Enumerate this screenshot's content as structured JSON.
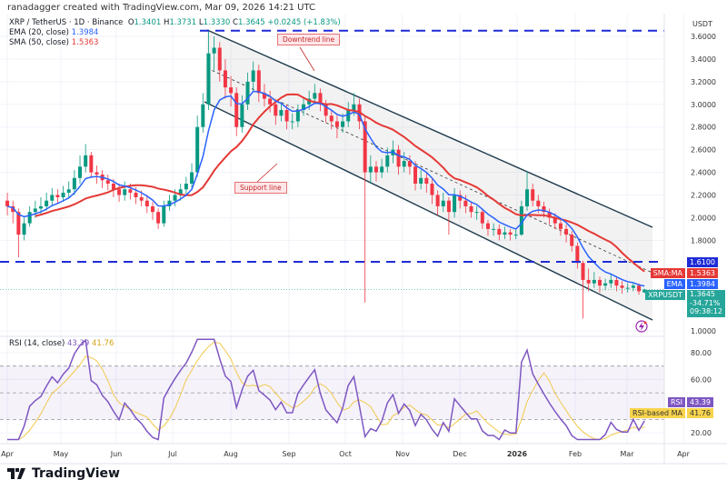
{
  "header": {
    "credit": "ranadagger created with TradingView.com, Mar 09, 2026 14:21 UTC"
  },
  "legend": {
    "symbol": "XRP / TetherUS · 1D · Binance",
    "open_label": "O",
    "open": "1.3401",
    "high_label": "H",
    "high": "1.3731",
    "low_label": "L",
    "low": "1.3330",
    "close_label": "C",
    "close": "1.3645",
    "change": "+0.0245 (+1.83%)",
    "ema_label": "EMA (20, close)",
    "ema_value": "1.3984",
    "sma_label": "SMA (50, close)",
    "sma_value": "1.5363",
    "rsi_label": "RSI (14, close)",
    "rsi_value": "43.39",
    "rsi_ma_value": "41.76"
  },
  "price_axis": {
    "unit": "USDT",
    "ticks": [
      "3.6000",
      "3.4000",
      "3.2000",
      "3.0000",
      "2.8000",
      "2.6000",
      "2.4000",
      "2.2000",
      "2.0000",
      "1.8000",
      "1.0000"
    ]
  },
  "rsi_axis": {
    "ticks": [
      "80.00",
      "60.00",
      "20.00"
    ]
  },
  "tags": {
    "level": "1.6100",
    "sma_name": "SMA:MA",
    "sma": "1.5363",
    "ema_name": "EMA",
    "ema": "1.3984",
    "symbol_name": "XRPUSDT",
    "price": "1.3645",
    "change_pct": "-34.71%",
    "countdown": "09:38:12",
    "rsi_name": "RSI",
    "rsi": "43.39",
    "rsi_ma_name": "RSI-based MA",
    "rsi_ma": "41.76"
  },
  "annotations": {
    "downtrend": "Downtrend line",
    "support": "Support line"
  },
  "x_axis": [
    "Apr",
    "May",
    "Jun",
    "Jul",
    "Aug",
    "Sep",
    "Oct",
    "Nov",
    "Dec",
    "2026",
    "Feb",
    "Mar",
    "Apr"
  ],
  "logo": {
    "text": "TradingView"
  },
  "colors": {
    "up": "#089981",
    "down": "#f23645",
    "ema": "#2962ff",
    "sma": "#e53935",
    "rsi": "#7e57c2",
    "rsi_ma": "#f2c94c",
    "level": "#1e2bd6"
  },
  "chart_data": {
    "type": "candlestick",
    "interval": "3 days per candle (approximate read)",
    "start": "2025-04-01",
    "end": "2026-03-09",
    "ylim": [
      1.0,
      3.7
    ],
    "horizontal_levels": [
      3.65,
      1.61
    ],
    "prev_close": 2.15,
    "close": [
      2.1,
      2.05,
      1.85,
      1.95,
      2.05,
      2.08,
      2.1,
      2.15,
      2.2,
      2.18,
      2.22,
      2.25,
      2.35,
      2.45,
      2.55,
      2.4,
      2.38,
      2.33,
      2.3,
      2.25,
      2.2,
      2.25,
      2.22,
      2.18,
      2.15,
      2.1,
      2.05,
      1.95,
      2.1,
      2.15,
      2.2,
      2.25,
      2.3,
      2.4,
      2.8,
      3.0,
      3.45,
      3.5,
      3.3,
      3.15,
      3.1,
      2.8,
      3.0,
      3.2,
      3.3,
      3.1,
      3.05,
      3.0,
      2.9,
      2.95,
      2.85,
      2.85,
      2.95,
      3.0,
      3.05,
      3.1,
      3.0,
      2.9,
      2.85,
      2.8,
      2.85,
      2.95,
      3.0,
      2.85,
      2.4,
      2.45,
      2.4,
      2.45,
      2.55,
      2.6,
      2.45,
      2.5,
      2.45,
      2.3,
      2.35,
      2.3,
      2.2,
      2.1,
      2.15,
      2.05,
      2.2,
      2.15,
      2.1,
      2.05,
      2.05,
      1.95,
      1.9,
      1.9,
      1.85,
      1.87,
      1.85,
      1.85,
      2.1,
      2.25,
      2.15,
      2.1,
      2.05,
      2.0,
      1.95,
      1.9,
      1.85,
      1.75,
      1.6,
      1.45,
      1.42,
      1.45,
      1.4,
      1.42,
      1.45,
      1.4,
      1.38,
      1.38,
      1.4,
      1.35,
      1.3645
    ],
    "high": [
      2.22,
      2.15,
      2.08,
      2.0,
      2.1,
      2.15,
      2.18,
      2.22,
      2.26,
      2.25,
      2.28,
      2.32,
      2.42,
      2.55,
      2.65,
      2.58,
      2.46,
      2.42,
      2.38,
      2.34,
      2.3,
      2.32,
      2.3,
      2.27,
      2.24,
      2.2,
      2.14,
      2.08,
      2.15,
      2.2,
      2.25,
      2.3,
      2.36,
      2.48,
      2.9,
      3.1,
      3.66,
      3.6,
      3.55,
      3.4,
      3.25,
      3.15,
      3.08,
      3.28,
      3.38,
      3.35,
      3.18,
      3.12,
      3.05,
      3.02,
      3.0,
      2.92,
      3.0,
      3.06,
      3.12,
      3.18,
      3.14,
      3.04,
      2.95,
      2.9,
      2.92,
      3.02,
      3.1,
      3.05,
      2.9,
      2.55,
      2.5,
      2.52,
      2.62,
      2.68,
      2.64,
      2.58,
      2.55,
      2.5,
      2.42,
      2.4,
      2.34,
      2.24,
      2.22,
      2.18,
      2.26,
      2.24,
      2.2,
      2.14,
      2.1,
      2.08,
      1.98,
      1.95,
      1.94,
      1.92,
      1.9,
      1.9,
      2.15,
      2.41,
      2.3,
      2.2,
      2.14,
      2.08,
      2.04,
      1.98,
      1.94,
      1.88,
      1.78,
      1.62,
      1.55,
      1.52,
      1.48,
      1.46,
      1.5,
      1.48,
      1.44,
      1.42,
      1.43,
      1.42,
      1.3731
    ],
    "low": [
      2.02,
      1.95,
      1.65,
      1.8,
      1.92,
      2.0,
      2.03,
      2.06,
      2.1,
      2.12,
      2.14,
      2.17,
      2.2,
      2.3,
      2.4,
      2.35,
      2.3,
      2.26,
      2.24,
      2.18,
      2.14,
      2.15,
      2.16,
      2.12,
      2.1,
      2.04,
      1.98,
      1.9,
      1.92,
      2.06,
      2.1,
      2.15,
      2.2,
      2.26,
      2.36,
      2.75,
      2.95,
      3.3,
      3.2,
      3.05,
      2.98,
      2.72,
      2.75,
      2.95,
      3.12,
      3.02,
      2.98,
      2.93,
      2.82,
      2.85,
      2.78,
      2.78,
      2.8,
      2.9,
      2.95,
      3.0,
      2.94,
      2.84,
      2.78,
      2.7,
      2.75,
      2.8,
      2.9,
      2.78,
      1.25,
      2.3,
      2.32,
      2.35,
      2.4,
      2.48,
      2.38,
      2.4,
      2.38,
      2.24,
      2.25,
      2.22,
      2.12,
      2.02,
      2.05,
      1.85,
      2.0,
      2.08,
      2.04,
      2.0,
      1.98,
      1.9,
      1.84,
      1.84,
      1.8,
      1.81,
      1.8,
      1.81,
      1.84,
      2.06,
      2.1,
      2.04,
      2.0,
      1.94,
      1.9,
      1.84,
      1.78,
      1.7,
      1.55,
      1.11,
      1.35,
      1.38,
      1.34,
      1.36,
      1.38,
      1.35,
      1.33,
      1.34,
      1.35,
      1.32,
      1.333
    ],
    "last_open": 1.3401,
    "series": [
      {
        "name": "EMA (20, close)"
      },
      {
        "name": "SMA (50, close)"
      },
      {
        "name": "RSI (14, close)"
      },
      {
        "name": "RSI-based MA"
      }
    ],
    "rsi_ylim": [
      10,
      90
    ],
    "rsi_bands": [
      70,
      50,
      30
    ]
  }
}
